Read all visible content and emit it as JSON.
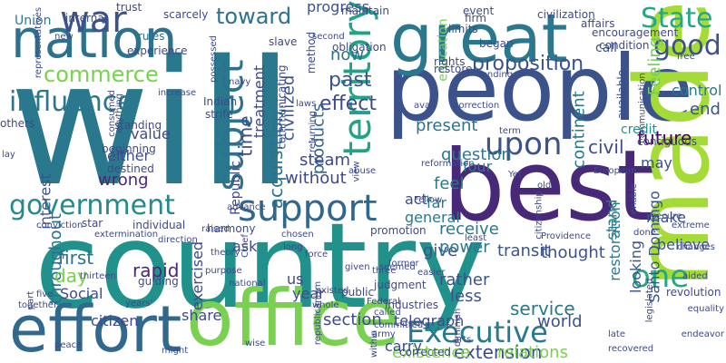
{
  "words": [
    {
      "text": "will",
      "color": "#2a788e"
    },
    {
      "text": "country",
      "color": "#21918c"
    },
    {
      "text": "people",
      "color": "#3b528b"
    },
    {
      "text": "best",
      "color": "#482878"
    },
    {
      "text": "nation",
      "color": "#2c728e"
    },
    {
      "text": "great",
      "color": "#2a788e"
    },
    {
      "text": "made",
      "color": "#a5db36"
    },
    {
      "text": "office",
      "color": "#7ad151"
    },
    {
      "text": "effort",
      "color": "#31688e"
    },
    {
      "text": "government",
      "color": "#238a8d"
    },
    {
      "text": "support",
      "color": "#30678d"
    },
    {
      "text": "influence",
      "color": "#2a788e"
    },
    {
      "text": "commerce",
      "color": "#7ad151"
    },
    {
      "text": "war",
      "color": "#3b528b"
    },
    {
      "text": "territory",
      "color": "#20a386"
    },
    {
      "text": "subject",
      "color": "#2c728e"
    },
    {
      "text": "State",
      "color": "#22a884"
    },
    {
      "text": "good",
      "color": "#3b528b"
    },
    {
      "text": "upon",
      "color": "#3b528b"
    },
    {
      "text": "one",
      "color": "#22a884"
    },
    {
      "text": "Executive",
      "color": "#2a788e"
    },
    {
      "text": "toward",
      "color": "#2c728e"
    },
    {
      "text": "past",
      "color": "#3b528b"
    },
    {
      "text": "now",
      "color": "#2d708e"
    },
    {
      "text": "effect",
      "color": "#3e4a89"
    },
    {
      "text": "proposition",
      "color": "#3b528b"
    },
    {
      "text": "present",
      "color": "#2c728e"
    },
    {
      "text": "question",
      "color": "#2a788e"
    },
    {
      "text": "civil",
      "color": "#3e4a89"
    },
    {
      "text": "future",
      "color": "#440154"
    },
    {
      "text": "control",
      "color": "#2a788e"
    },
    {
      "text": "Feeling",
      "color": "#6ece58"
    },
    {
      "text": "end",
      "color": "#3b528b"
    },
    {
      "text": "continent",
      "color": "#2a788e"
    },
    {
      "text": "acquisition",
      "color": "#2c728e"
    },
    {
      "text": "civilized",
      "color": "#3b528b"
    },
    {
      "text": "products",
      "color": "#31688e"
    },
    {
      "text": "steam",
      "color": "#3e4a89"
    },
    {
      "text": "treatment",
      "color": "#3e4a89"
    },
    {
      "text": "time",
      "color": "#3e4a89"
    },
    {
      "text": "without",
      "color": "#3e4a89"
    },
    {
      "text": "throughout",
      "color": "#2c728e"
    },
    {
      "text": "interest",
      "color": "#3b528b"
    },
    {
      "text": "first",
      "color": "#2c728e"
    },
    {
      "text": "day",
      "color": "#7ad151"
    },
    {
      "text": "rapid",
      "color": "#482878"
    },
    {
      "text": "give",
      "color": "#3b528b"
    },
    {
      "text": "receive",
      "color": "#2a788e"
    },
    {
      "text": "power",
      "color": "#2a788e"
    },
    {
      "text": "rather",
      "color": "#3b528b"
    },
    {
      "text": "less",
      "color": "#3b528b"
    },
    {
      "text": "transit",
      "color": "#3b528b"
    },
    {
      "text": "service",
      "color": "#2a788e"
    },
    {
      "text": "world",
      "color": "#3b528b"
    },
    {
      "text": "thought",
      "color": "#3b528b"
    },
    {
      "text": "section",
      "color": "#3e4a89"
    },
    {
      "text": "telegraph",
      "color": "#3e4a89"
    },
    {
      "text": "extension",
      "color": "#3e4a89"
    },
    {
      "text": "existence",
      "color": "#7ad151"
    },
    {
      "text": "relations",
      "color": "#7ad151"
    },
    {
      "text": "Santo Domingo",
      "color": "#3b528b"
    },
    {
      "text": "restoration",
      "color": "#2a788e"
    },
    {
      "text": "believe",
      "color": "#3b528b"
    },
    {
      "text": "make",
      "color": "#3b528b"
    },
    {
      "text": "may",
      "color": "#3b528b"
    },
    {
      "text": "credit",
      "color": "#21918c"
    },
    {
      "text": "feel",
      "color": "#2a788e"
    },
    {
      "text": "act",
      "color": "#3e4a89"
    },
    {
      "text": "four",
      "color": "#2a788e"
    },
    {
      "text": "general",
      "color": "#2a788e"
    },
    {
      "text": "far",
      "color": "#2a788e"
    },
    {
      "text": "stand",
      "color": "#2a788e"
    },
    {
      "text": "looking",
      "color": "#3b528b"
    },
    {
      "text": "education",
      "color": "#7ad151"
    },
    {
      "text": "progress",
      "color": "#3b528b"
    },
    {
      "text": "value",
      "color": "#3e4a89"
    },
    {
      "text": "either",
      "color": "#3e4a89"
    },
    {
      "text": "wrong",
      "color": "#482878"
    },
    {
      "text": "exercised",
      "color": "#3e4a89"
    },
    {
      "text": "share",
      "color": "#3e4a89"
    },
    {
      "text": "citizen",
      "color": "#3e4a89"
    },
    {
      "text": "Social",
      "color": "#3e4a89"
    },
    {
      "text": "year",
      "color": "#3e4a89"
    },
    {
      "text": "us",
      "color": "#3e4a89"
    },
    {
      "text": "ask",
      "color": "#3e4a89"
    },
    {
      "text": "carry",
      "color": "#3e4a89"
    },
    {
      "text": "Republic",
      "color": "#3e4a89"
    },
    {
      "text": "call",
      "color": "#3b528b"
    },
    {
      "text": "Union",
      "color": "#2a788e"
    },
    {
      "text": "rules",
      "color": "#2c728e"
    },
    {
      "text": "navy",
      "color": "#3e4a89"
    },
    {
      "text": "Indian",
      "color": "#3e4a89"
    },
    {
      "text": "strife",
      "color": "#3e4a89"
    },
    {
      "text": "method",
      "color": "#3e4a89"
    },
    {
      "text": "obligation",
      "color": "#3e4a89"
    },
    {
      "text": "slave",
      "color": "#3e4a89"
    },
    {
      "text": "firm",
      "color": "#3e4a89"
    },
    {
      "text": "limits",
      "color": "#3e4a89"
    },
    {
      "text": "began",
      "color": "#3e4a89"
    },
    {
      "text": "rights",
      "color": "#3e4a89"
    },
    {
      "text": "restore",
      "color": "#3e4a89"
    },
    {
      "text": "event",
      "color": "#3e4a89"
    },
    {
      "text": "civilization",
      "color": "#3e4a89"
    },
    {
      "text": "affairs",
      "color": "#3e4a89"
    },
    {
      "text": "encouragement",
      "color": "#3e4a89"
    },
    {
      "text": "condition",
      "color": "#3e4a89"
    },
    {
      "text": "free",
      "color": "#3e4a89"
    },
    {
      "text": "maintain",
      "color": "#3e4a89"
    },
    {
      "text": "trust",
      "color": "#3e4a89"
    },
    {
      "text": "scarcely",
      "color": "#3e4a89"
    },
    {
      "text": "internal",
      "color": "#3e4a89"
    },
    {
      "text": "experience",
      "color": "#3e4a89"
    },
    {
      "text": "increase",
      "color": "#3e4a89"
    },
    {
      "text": "second",
      "color": "#3e4a89"
    },
    {
      "text": "lending",
      "color": "#3e4a89"
    },
    {
      "text": "term",
      "color": "#3e4a89"
    },
    {
      "text": "reformation",
      "color": "#3e4a89"
    },
    {
      "text": "correction",
      "color": "#3e4a89"
    },
    {
      "text": "available",
      "color": "#3e4a89"
    },
    {
      "text": "communication",
      "color": "#3e4a89"
    },
    {
      "text": "contiguous",
      "color": "#3e4a89"
    },
    {
      "text": "abuse",
      "color": "#3e4a89"
    },
    {
      "text": "view",
      "color": "#3e4a89"
    },
    {
      "text": "returning",
      "color": "#3e4a89"
    },
    {
      "text": "communicating",
      "color": "#3e4a89"
    },
    {
      "text": "standing",
      "color": "#3e4a89"
    },
    {
      "text": "beginning",
      "color": "#3e4a89"
    },
    {
      "text": "destined",
      "color": "#3e4a89"
    },
    {
      "text": "consumed",
      "color": "#3e4a89"
    },
    {
      "text": "anything",
      "color": "#3e4a89"
    },
    {
      "text": "others",
      "color": "#3e4a89"
    },
    {
      "text": "lay",
      "color": "#3e4a89"
    },
    {
      "text": "conviction",
      "color": "#3e4a89"
    },
    {
      "text": "raised",
      "color": "#3e4a89"
    },
    {
      "text": "star",
      "color": "#3e4a89"
    },
    {
      "text": "individual",
      "color": "#3e4a89"
    },
    {
      "text": "extermination",
      "color": "#3e4a89"
    },
    {
      "text": "advance",
      "color": "#3e4a89"
    },
    {
      "text": "harmony",
      "color": "#3e4a89"
    },
    {
      "text": "direction",
      "color": "#3e4a89"
    },
    {
      "text": "theory",
      "color": "#3e4a89"
    },
    {
      "text": "purpose",
      "color": "#3e4a89"
    },
    {
      "text": "national",
      "color": "#3e4a89"
    },
    {
      "text": "guiding",
      "color": "#3e4a89"
    },
    {
      "text": "thirteen",
      "color": "#3e4a89"
    },
    {
      "text": "years'",
      "color": "#3e4a89"
    },
    {
      "text": "part",
      "color": "#3e4a89"
    },
    {
      "text": "together",
      "color": "#3e4a89"
    },
    {
      "text": "peace",
      "color": "#3e4a89"
    },
    {
      "text": "might",
      "color": "#3e4a89"
    },
    {
      "text": "wise",
      "color": "#3e4a89"
    },
    {
      "text": "Chief",
      "color": "#3e4a89"
    },
    {
      "text": "chosen",
      "color": "#3e4a89"
    },
    {
      "text": "long",
      "color": "#3e4a89"
    },
    {
      "text": "public",
      "color": "#3e4a89"
    },
    {
      "text": "judgment",
      "color": "#3e4a89"
    },
    {
      "text": "industries",
      "color": "#3e4a89"
    },
    {
      "text": "promotion",
      "color": "#3e4a89"
    },
    {
      "text": "least",
      "color": "#3e4a89"
    },
    {
      "text": "force",
      "color": "#3e4a89"
    },
    {
      "text": "given",
      "color": "#3e4a89"
    },
    {
      "text": "three",
      "color": "#3e4a89"
    },
    {
      "text": "former",
      "color": "#3e4a89"
    },
    {
      "text": "seemed",
      "color": "#3e4a89"
    },
    {
      "text": "easier",
      "color": "#3e4a89"
    },
    {
      "text": "Federal",
      "color": "#3e4a89"
    },
    {
      "text": "called",
      "color": "#3e4a89"
    },
    {
      "text": "existed",
      "color": "#3e4a89"
    },
    {
      "text": "whole",
      "color": "#3e4a89"
    },
    {
      "text": "committed",
      "color": "#3e4a89"
    },
    {
      "text": "republicanism",
      "color": "#3e4a89"
    },
    {
      "text": "army",
      "color": "#3e4a89"
    },
    {
      "text": "within",
      "color": "#3e4a89"
    },
    {
      "text": "corrected",
      "color": "#3e4a89"
    },
    {
      "text": "diminish",
      "color": "#3e4a89"
    },
    {
      "text": "arts",
      "color": "#3e4a89"
    },
    {
      "text": "citizenship",
      "color": "#3e4a89"
    },
    {
      "text": "Providence",
      "color": "#3e4a89"
    },
    {
      "text": "done",
      "color": "#3e4a89"
    },
    {
      "text": "changes",
      "color": "#3e4a89"
    },
    {
      "text": "aided",
      "color": "#3e4a89"
    },
    {
      "text": "revolution",
      "color": "#3e4a89"
    },
    {
      "text": "equality",
      "color": "#3e4a89"
    },
    {
      "text": "endeavor",
      "color": "#3e4a89"
    },
    {
      "text": "legislated",
      "color": "#3e4a89"
    },
    {
      "text": "late",
      "color": "#3e4a89"
    },
    {
      "text": "recovered",
      "color": "#3e4a89"
    },
    {
      "text": "Fellow",
      "color": "#3e4a89"
    },
    {
      "text": "Yet",
      "color": "#3e4a89"
    },
    {
      "text": "old",
      "color": "#3e4a89"
    },
    {
      "text": "European",
      "color": "#3e4a89"
    },
    {
      "text": "enable",
      "color": "#3e4a89"
    },
    {
      "text": "secure",
      "color": "#3e4a89"
    },
    {
      "text": "extreme",
      "color": "#3e4a89"
    },
    {
      "text": "five",
      "color": "#3e4a89"
    },
    {
      "text": "possessed",
      "color": "#3e4a89"
    },
    {
      "text": "laws",
      "color": "#3e4a89"
    },
    {
      "text": "representatives",
      "color": "#3e4a89"
    },
    {
      "text": "new",
      "color": "#3e4a89"
    },
    {
      "text": "avail",
      "color": "#3e4a89"
    }
  ]
}
